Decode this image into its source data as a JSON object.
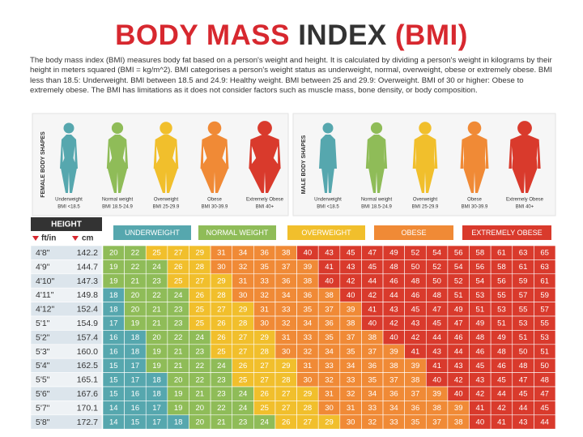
{
  "title": [
    {
      "text": "BODY MASS",
      "color": "#d7282f"
    },
    {
      "text": "INDEX",
      "color": "#333333"
    },
    {
      "text": "(BMI)",
      "color": "#d7282f"
    }
  ],
  "intro": "The body mass index (BMI) measures body fat based on a person's weight and height. It is calculated by dividing a person's weight in kilograms by their height in meters squared (BMI = kg/m^2). BMI categorises a person's weight status as underweight, normal, overweight, obese or extremely obese. BMI less than 18.5: Underweight. BMI between 18.5 and 24.9: Healthy weight. BMI between 25 and 29.9: Overweight. BMI of 30 or higher: Obese to extremely obese. The BMI has limitations as it does not consider factors such as muscle mass, bone density, or body composition.",
  "female_shapes": {
    "label": "FEMALE BODY SHAPES",
    "figures": [
      {
        "name": "Underweight",
        "range": "BMI <18.5"
      },
      {
        "name": "Normal weight",
        "range": "BMI 18.5-24.9"
      },
      {
        "name": "Overweight",
        "range": "BMI 25-29.9"
      },
      {
        "name": "Obese",
        "range": "BMI 30-39.9"
      },
      {
        "name": "Extremely Obese",
        "range": "BMI 40+"
      }
    ]
  },
  "male_shapes": {
    "label": "MALE BODY SHAPES",
    "figures": [
      {
        "name": "Underweight",
        "range": "BMI <18.5"
      },
      {
        "name": "Normal weight",
        "range": "BMI 18.5-24.9"
      },
      {
        "name": "Overweight",
        "range": "BMI 25-29.9"
      },
      {
        "name": "Obese",
        "range": "BMI 30-39.9"
      },
      {
        "name": "Extremely Obese",
        "range": "BMI 40+"
      }
    ]
  },
  "table": {
    "height_header": "HEIGHT",
    "ft_in_header": "ft/in",
    "cm_header": "cm",
    "categories": [
      {
        "name": "UNDERWEIGHT",
        "color": "#56a7ae"
      },
      {
        "name": "NORMAL WEIGHT",
        "color": "#8fbc58",
        "from": 18.5
      },
      {
        "name": "OVERWEIGHT",
        "color": "#f1bf2c",
        "from": 25
      },
      {
        "name": "OBESE",
        "color": "#f08a36",
        "from": 30
      },
      {
        "name": "EXTREMELY OBESE",
        "color": "#d93a2c",
        "from": 40
      }
    ],
    "rows": [
      {
        "ft_in": "4'8\"",
        "cm": "142.2",
        "values": [
          20,
          22,
          25,
          27,
          29,
          31,
          34,
          36,
          38,
          40,
          43,
          45,
          47,
          49,
          52,
          54,
          56,
          58,
          61,
          63,
          65
        ]
      },
      {
        "ft_in": "4'9\"",
        "cm": "144.7",
        "values": [
          19,
          22,
          24,
          26,
          28,
          30,
          32,
          35,
          37,
          39,
          41,
          43,
          45,
          48,
          50,
          52,
          54,
          56,
          58,
          61,
          63
        ]
      },
      {
        "ft_in": "4'10\"",
        "cm": "147.3",
        "values": [
          19,
          21,
          23,
          25,
          27,
          29,
          31,
          33,
          36,
          38,
          40,
          42,
          44,
          46,
          48,
          50,
          52,
          54,
          56,
          59,
          61
        ]
      },
      {
        "ft_in": "4'11\"",
        "cm": "149.8",
        "values": [
          18,
          20,
          22,
          24,
          26,
          28,
          30,
          32,
          34,
          36,
          38,
          40,
          42,
          44,
          46,
          48,
          51,
          53,
          55,
          57,
          59
        ]
      },
      {
        "ft_in": "4'12\"",
        "cm": "152.4",
        "values": [
          18,
          20,
          21,
          23,
          25,
          27,
          29,
          31,
          33,
          35,
          37,
          39,
          41,
          43,
          45,
          47,
          49,
          51,
          53,
          55,
          57
        ]
      },
      {
        "ft_in": "5'1\"",
        "cm": "154.9",
        "values": [
          17,
          19,
          21,
          23,
          25,
          26,
          28,
          30,
          32,
          34,
          36,
          38,
          40,
          42,
          43,
          45,
          47,
          49,
          51,
          53,
          55
        ]
      },
      {
        "ft_in": "5'2\"",
        "cm": "157.4",
        "values": [
          16,
          18,
          20,
          22,
          24,
          26,
          27,
          29,
          31,
          33,
          35,
          37,
          38,
          40,
          42,
          44,
          46,
          48,
          49,
          51,
          53
        ]
      },
      {
        "ft_in": "5'3\"",
        "cm": "160.0",
        "values": [
          16,
          18,
          19,
          21,
          23,
          25,
          27,
          28,
          30,
          32,
          34,
          35,
          37,
          39,
          41,
          43,
          44,
          46,
          48,
          50,
          51
        ]
      },
      {
        "ft_in": "5'4\"",
        "cm": "162.5",
        "values": [
          15,
          17,
          19,
          21,
          22,
          24,
          26,
          27,
          29,
          31,
          33,
          34,
          36,
          38,
          39,
          41,
          43,
          45,
          46,
          48,
          50
        ]
      },
      {
        "ft_in": "5'5\"",
        "cm": "165.1",
        "values": [
          15,
          17,
          18,
          20,
          22,
          23,
          25,
          27,
          28,
          30,
          32,
          33,
          35,
          37,
          38,
          40,
          42,
          43,
          45,
          47,
          48
        ]
      },
      {
        "ft_in": "5'6\"",
        "cm": "167.6",
        "values": [
          15,
          16,
          18,
          19,
          21,
          23,
          24,
          26,
          27,
          29,
          31,
          32,
          34,
          36,
          37,
          39,
          40,
          42,
          44,
          45,
          47
        ]
      },
      {
        "ft_in": "5'7\"",
        "cm": "170.1",
        "values": [
          14,
          16,
          17,
          19,
          20,
          22,
          24,
          25,
          27,
          28,
          30,
          31,
          33,
          34,
          36,
          38,
          39,
          41,
          42,
          44,
          45
        ]
      },
      {
        "ft_in": "5'8\"",
        "cm": "172.7",
        "values": [
          14,
          15,
          17,
          18,
          20,
          21,
          23,
          24,
          26,
          27,
          29,
          30,
          32,
          33,
          35,
          37,
          38,
          40,
          41,
          43,
          44
        ]
      }
    ]
  }
}
